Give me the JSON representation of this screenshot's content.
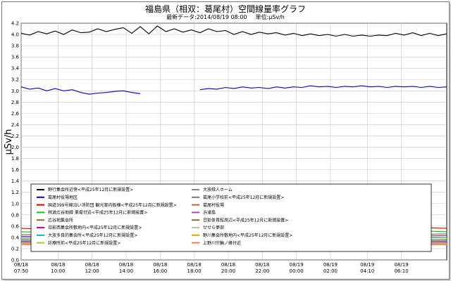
{
  "header": {
    "title": "福島県（相双：葛尾村）空間線量率グラフ",
    "latest": "最新データ:2014/08/19 08:00",
    "unit": "単位:μSv/h"
  },
  "chart_data": {
    "type": "line",
    "title": "福島県（相双：葛尾村）空間線量率グラフ",
    "ylabel": "μSv/h",
    "ylim": [
      0,
      4.2
    ],
    "grid": true,
    "y_ticks": [
      "0.0",
      "0.2",
      "0.4",
      "0.6",
      "0.8",
      "1.0",
      "1.2",
      "1.4",
      "1.6",
      "1.8",
      "2.0",
      "2.2",
      "2.4",
      "2.6",
      "2.8",
      "3.0",
      "3.2",
      "3.4",
      "3.6",
      "3.8",
      "4.0",
      "4.2"
    ],
    "x_range_hours": [
      0,
      25
    ],
    "x_ticks": [
      {
        "t": 0,
        "date": "08/18",
        "time": "07:50"
      },
      {
        "t": 2.1667,
        "date": "08/18",
        "time": "10:00"
      },
      {
        "t": 4.1667,
        "date": "08/18",
        "time": "12:00"
      },
      {
        "t": 6.1667,
        "date": "08/18",
        "time": "14:00"
      },
      {
        "t": 8.1667,
        "date": "08/18",
        "time": "16:00"
      },
      {
        "t": 10.1667,
        "date": "08/18",
        "time": "18:00"
      },
      {
        "t": 12.1667,
        "date": "08/18",
        "time": "20:00"
      },
      {
        "t": 14.1667,
        "date": "08/18",
        "time": "22:00"
      },
      {
        "t": 16.1667,
        "date": "08/19",
        "time": "00:00"
      },
      {
        "t": 18.1667,
        "date": "08/19",
        "time": "02:00"
      },
      {
        "t": 20.3333,
        "date": "08/19",
        "time": "04:10"
      },
      {
        "t": 22.3333,
        "date": "08/19",
        "time": "06:10"
      }
    ],
    "legend_placement": "bottom-inside",
    "series": [
      {
        "name": "野行集会所近傍<平成25年12月に新規設置>",
        "color": "#000000",
        "values": [
          [
            0,
            4.02
          ],
          [
            0.5,
            3.99
          ],
          [
            1,
            4.05
          ],
          [
            1.5,
            4.01
          ],
          [
            2,
            4.06
          ],
          [
            2.5,
            4.0
          ],
          [
            3,
            4.08
          ],
          [
            3.5,
            4.03
          ],
          [
            4,
            4.04
          ],
          [
            4.5,
            4.1
          ],
          [
            5,
            4.05
          ],
          [
            5.5,
            4.09
          ],
          [
            6,
            4.12
          ],
          [
            6.5,
            4.02
          ],
          [
            7,
            4.14
          ],
          [
            7.5,
            4.01
          ],
          [
            8,
            4.15
          ],
          [
            8.5,
            4.05
          ],
          [
            9,
            4.1
          ],
          [
            9.5,
            4.04
          ],
          [
            10,
            4.08
          ],
          [
            10.5,
            4.03
          ],
          [
            11,
            4.1
          ],
          [
            11.5,
            4.05
          ],
          [
            12,
            4.07
          ],
          [
            12.5,
            4.0
          ],
          [
            13,
            4.05
          ],
          [
            13.5,
            4.0
          ],
          [
            14,
            4.04
          ],
          [
            14.5,
            4.01
          ],
          [
            15,
            4.03
          ],
          [
            15.5,
            3.99
          ],
          [
            16,
            4.02
          ],
          [
            16.5,
            3.98
          ],
          [
            17,
            4.01
          ],
          [
            17.5,
            3.98
          ],
          [
            18,
            4.0
          ],
          [
            18.5,
            3.97
          ],
          [
            19,
            4.0
          ],
          [
            19.5,
            3.97
          ],
          [
            20,
            3.99
          ],
          [
            20.5,
            3.97
          ],
          [
            21,
            3.99
          ],
          [
            21.5,
            3.98
          ],
          [
            22,
            4.02
          ],
          [
            22.5,
            3.99
          ],
          [
            23,
            4.03
          ],
          [
            23.5,
            3.98
          ],
          [
            24,
            4.02
          ],
          [
            24.5,
            3.98
          ],
          [
            25,
            4.01
          ]
        ]
      },
      {
        "name": "葛尾村役場地区",
        "color": "#0000cc",
        "values": [
          [
            0,
            3.07
          ],
          [
            0.5,
            3.03
          ],
          [
            1,
            3.05
          ],
          [
            1.5,
            3.0
          ],
          [
            2,
            3.04
          ],
          [
            2.5,
            3.0
          ],
          [
            3,
            3.02
          ],
          [
            3.5,
            2.97
          ],
          [
            4,
            2.94
          ],
          [
            4.5,
            2.96
          ],
          [
            5,
            2.97
          ],
          [
            5.5,
            2.99
          ],
          [
            6,
            3.0
          ],
          [
            6.5,
            2.97
          ],
          [
            7,
            2.95
          ],
          null,
          [
            10.5,
            3.02
          ],
          [
            11,
            3.04
          ],
          [
            11.5,
            3.03
          ],
          [
            12,
            3.06
          ],
          [
            12.5,
            3.04
          ],
          [
            13,
            3.07
          ],
          [
            13.5,
            3.05
          ],
          [
            14,
            3.06
          ],
          [
            14.5,
            3.04
          ],
          [
            15,
            3.07
          ],
          [
            15.5,
            3.05
          ],
          [
            16,
            3.07
          ],
          [
            16.5,
            3.06
          ],
          [
            17,
            3.09
          ],
          [
            17.5,
            3.07
          ],
          [
            18,
            3.08
          ],
          [
            18.5,
            3.06
          ],
          [
            19,
            3.08
          ],
          [
            19.5,
            3.07
          ],
          [
            20,
            3.09
          ],
          [
            20.5,
            3.07
          ],
          [
            21,
            3.08
          ],
          [
            21.5,
            3.06
          ],
          [
            22,
            3.08
          ],
          [
            22.5,
            3.07
          ],
          [
            23,
            3.08
          ],
          [
            23.5,
            3.06
          ],
          [
            24,
            3.08
          ],
          [
            24.5,
            3.06
          ],
          [
            25,
            3.07
          ]
        ]
      },
      {
        "name": "国道399号線沿い消防団 観光案内板横<平成25年12月に新規設置>",
        "color": "#dd0000",
        "values": [
          [
            0,
            0.56
          ],
          [
            2,
            0.54
          ],
          [
            4,
            0.55
          ],
          [
            6,
            0.53
          ],
          [
            8,
            0.55
          ],
          [
            10,
            0.54
          ],
          [
            12,
            0.56
          ],
          [
            14,
            0.55
          ],
          [
            16,
            0.57
          ],
          [
            18,
            0.56
          ],
          [
            20,
            0.57
          ],
          [
            22,
            0.56
          ],
          [
            24,
            0.57
          ],
          [
            25,
            0.56
          ]
        ]
      },
      {
        "name": "林道広谷地線 東堤付近<平成25年12月に新規設置>",
        "color": "#00cc00",
        "values": [
          [
            0,
            0.5
          ],
          [
            2,
            0.49
          ],
          [
            4,
            0.51
          ],
          [
            6,
            0.5
          ],
          [
            8,
            0.49
          ],
          [
            10,
            0.5
          ],
          [
            12,
            0.51
          ],
          [
            14,
            0.5
          ],
          [
            16,
            0.51
          ],
          [
            18,
            0.5
          ],
          [
            20,
            0.52
          ],
          [
            22,
            0.5
          ],
          [
            24,
            0.51
          ],
          [
            25,
            0.5
          ]
        ]
      },
      {
        "name": "広谷地集会所",
        "color": "#8a6a2a",
        "values": [
          [
            0,
            0.45
          ],
          [
            3,
            0.44
          ],
          [
            6,
            0.45
          ],
          [
            9,
            0.44
          ],
          [
            12,
            0.46
          ],
          [
            15,
            0.45
          ],
          [
            18,
            0.46
          ],
          [
            21,
            0.45
          ],
          [
            25,
            0.46
          ]
        ]
      },
      {
        "name": "日影西集会所敷地内<平成25年12月に新規設置>",
        "color": "#cc00cc",
        "values": [
          [
            0,
            0.42
          ],
          [
            3,
            0.41
          ],
          [
            6,
            0.43
          ],
          [
            9,
            0.42
          ],
          [
            12,
            0.43
          ],
          [
            15,
            0.42
          ],
          [
            18,
            0.43
          ],
          [
            21,
            0.42
          ],
          [
            25,
            0.43
          ]
        ]
      },
      {
        "name": "大放多目的集会所<平成25年12月に新規設置>",
        "color": "#00b8b8",
        "values": [
          [
            0,
            0.4
          ],
          [
            3,
            0.39
          ],
          [
            6,
            0.4
          ],
          [
            9,
            0.41
          ],
          [
            12,
            0.4
          ],
          [
            15,
            0.41
          ],
          [
            18,
            0.4
          ],
          [
            21,
            0.41
          ],
          [
            25,
            0.4
          ]
        ]
      },
      {
        "name": "診療所前<平成25年12月に新規設置>",
        "color": "#9acd32",
        "values": [
          [
            0,
            0.38
          ],
          [
            3,
            0.37
          ],
          [
            6,
            0.38
          ],
          [
            9,
            0.37
          ],
          [
            12,
            0.39
          ],
          [
            15,
            0.38
          ],
          [
            18,
            0.39
          ],
          [
            21,
            0.38
          ],
          [
            25,
            0.39
          ]
        ]
      },
      {
        "name": "大放緑人ホーム",
        "color": "#888888",
        "values": [
          [
            0,
            0.36
          ],
          [
            3,
            0.35
          ],
          [
            6,
            0.36
          ],
          [
            9,
            0.35
          ],
          [
            12,
            0.36
          ],
          [
            15,
            0.35
          ],
          [
            18,
            0.36
          ],
          [
            21,
            0.35
          ],
          [
            25,
            0.36
          ]
        ]
      },
      {
        "name": "葛尾小学校前<平成25年12月に新規設置>",
        "color": "#5f7f9f",
        "values": [
          [
            0,
            0.35
          ],
          [
            3,
            0.34
          ],
          [
            6,
            0.35
          ],
          [
            9,
            0.34
          ],
          [
            12,
            0.35
          ],
          [
            15,
            0.34
          ],
          [
            18,
            0.35
          ],
          [
            21,
            0.34
          ],
          [
            25,
            0.35
          ]
        ]
      },
      {
        "name": "葛尾村役場",
        "color": "#c06040",
        "values": [
          [
            0,
            0.33
          ],
          [
            3,
            0.32
          ],
          [
            6,
            0.33
          ],
          [
            9,
            0.32
          ],
          [
            12,
            0.33
          ],
          [
            15,
            0.32
          ],
          [
            18,
            0.33
          ],
          [
            21,
            0.32
          ],
          [
            25,
            0.33
          ]
        ]
      },
      {
        "name": "浜浦島",
        "color": "#aa44cc",
        "values": [
          [
            0,
            0.32
          ],
          [
            3,
            0.31
          ],
          [
            6,
            0.32
          ],
          [
            9,
            0.31
          ],
          [
            12,
            0.32
          ],
          [
            15,
            0.31
          ],
          [
            18,
            0.32
          ],
          [
            21,
            0.31
          ],
          [
            25,
            0.32
          ]
        ]
      },
      {
        "name": "日影体育館周辺<平成25年12月に新規設置>",
        "color": "#7f6f2f",
        "values": [
          [
            0,
            0.3
          ],
          [
            3,
            0.29
          ],
          [
            6,
            0.3
          ],
          [
            9,
            0.29
          ],
          [
            12,
            0.3
          ],
          [
            15,
            0.29
          ],
          [
            18,
            0.3
          ],
          [
            21,
            0.29
          ],
          [
            25,
            0.3
          ]
        ]
      },
      {
        "name": "せせら夢部",
        "color": "#bbbbbb",
        "values": [
          [
            0,
            0.29
          ],
          [
            3,
            0.28
          ],
          [
            6,
            0.29
          ],
          [
            9,
            0.28
          ],
          [
            12,
            0.29
          ],
          [
            15,
            0.28
          ],
          [
            18,
            0.29
          ],
          [
            21,
            0.28
          ],
          [
            25,
            0.29
          ]
        ]
      },
      {
        "name": "野川集会所敷地内<平成25年12月に新規設置>",
        "color": "#e8a000",
        "values": [
          [
            0,
            0.28
          ],
          [
            3,
            0.27
          ],
          [
            6,
            0.28
          ],
          [
            9,
            0.27
          ],
          [
            12,
            0.28
          ],
          [
            15,
            0.27
          ],
          [
            18,
            0.28
          ],
          [
            21,
            0.27
          ],
          [
            25,
            0.28
          ]
        ]
      },
      {
        "name": "上野川宗輪ノ峰付近",
        "color": "#ff7f50",
        "values": [
          [
            0,
            0.27
          ],
          [
            3,
            0.26
          ],
          [
            6,
            0.27
          ],
          [
            9,
            0.26
          ],
          [
            12,
            0.27
          ],
          [
            15,
            0.26
          ],
          [
            18,
            0.27
          ],
          [
            21,
            0.26
          ],
          [
            25,
            0.27
          ]
        ]
      }
    ]
  }
}
